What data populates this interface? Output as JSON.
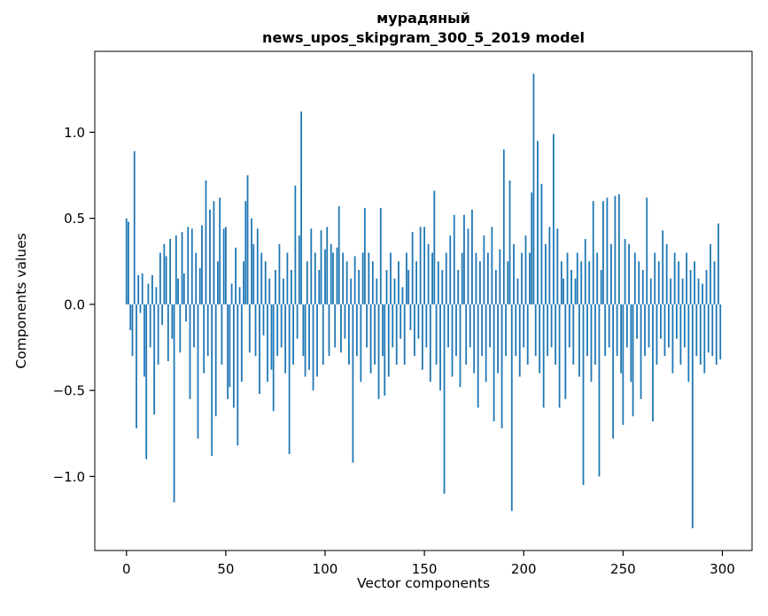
{
  "figure": {
    "title_line1": "мурадяный",
    "title_line2": "news_upos_skipgram_300_5_2019 model",
    "xlabel": "Vector components",
    "ylabel": "Components values"
  },
  "chart_data": {
    "type": "bar",
    "title": "мурадяный\nnews_upos_skipgram_300_5_2019 model",
    "xlabel": "Vector components",
    "ylabel": "Components values",
    "legend": "none",
    "grid": false,
    "bar_color": "#1f77b4",
    "x_ticks": [
      0,
      50,
      100,
      150,
      200,
      250,
      300
    ],
    "x_tick_labels": [
      "0",
      "50",
      "100",
      "150",
      "200",
      "250",
      "300"
    ],
    "y_ticks": [
      -1.0,
      -0.5,
      0.0,
      0.5,
      1.0
    ],
    "y_tick_labels": [
      "−1.0",
      "−0.5",
      "0.0",
      "0.5",
      "1.0"
    ],
    "xlim": [
      -15.95,
      314.95
    ],
    "ylim": [
      -1.43,
      1.47
    ],
    "n_components": 300,
    "values": [
      0.5,
      0.48,
      -0.15,
      -0.3,
      0.89,
      -0.72,
      0.17,
      -0.05,
      0.18,
      -0.42,
      -0.9,
      0.12,
      -0.25,
      0.17,
      -0.64,
      0.1,
      -0.35,
      0.3,
      -0.12,
      0.35,
      0.28,
      -0.33,
      0.38,
      -0.2,
      -1.15,
      0.4,
      0.15,
      -0.28,
      0.42,
      0.18,
      -0.1,
      0.45,
      -0.55,
      0.44,
      -0.25,
      0.3,
      -0.78,
      0.21,
      0.46,
      -0.4,
      0.72,
      -0.3,
      0.55,
      -0.88,
      0.6,
      -0.65,
      0.25,
      0.62,
      -0.35,
      0.44,
      0.45,
      -0.55,
      -0.48,
      0.12,
      -0.6,
      0.33,
      -0.82,
      0.1,
      -0.45,
      0.25,
      0.6,
      0.75,
      -0.28,
      0.5,
      0.35,
      -0.3,
      0.44,
      -0.52,
      0.3,
      -0.18,
      0.25,
      -0.45,
      0.15,
      -0.38,
      -0.62,
      0.2,
      -0.3,
      0.35,
      -0.25,
      0.15,
      -0.4,
      0.3,
      -0.87,
      0.2,
      -0.35,
      0.69,
      -0.2,
      0.4,
      1.12,
      -0.3,
      -0.42,
      0.25,
      -0.38,
      0.44,
      -0.5,
      0.3,
      -0.42,
      0.2,
      0.43,
      -0.35,
      0.32,
      0.45,
      -0.3,
      0.35,
      0.3,
      -0.25,
      0.33,
      0.57,
      -0.28,
      0.3,
      -0.2,
      0.25,
      -0.35,
      0.15,
      -0.92,
      0.28,
      -0.3,
      0.2,
      -0.45,
      0.3,
      0.56,
      -0.25,
      0.3,
      -0.4,
      0.25,
      -0.35,
      0.15,
      -0.55,
      0.56,
      -0.3,
      -0.53,
      0.2,
      -0.42,
      0.3,
      -0.25,
      0.15,
      -0.35,
      0.25,
      -0.2,
      0.1,
      -0.35,
      0.3,
      0.2,
      -0.15,
      0.42,
      -0.3,
      0.25,
      -0.2,
      0.45,
      -0.38,
      0.45,
      -0.25,
      0.35,
      -0.45,
      0.3,
      0.66,
      -0.35,
      0.25,
      -0.5,
      0.2,
      -1.1,
      0.3,
      -0.25,
      0.4,
      -0.42,
      0.52,
      -0.3,
      0.2,
      -0.48,
      0.3,
      0.52,
      -0.35,
      0.44,
      -0.25,
      0.55,
      -0.4,
      0.3,
      -0.6,
      0.25,
      -0.3,
      0.4,
      -0.45,
      0.3,
      -0.25,
      0.45,
      -0.68,
      0.2,
      -0.4,
      0.32,
      -0.72,
      0.9,
      -0.3,
      0.25,
      0.72,
      -1.2,
      0.35,
      -0.3,
      0.15,
      -0.42,
      0.3,
      -0.25,
      0.4,
      -0.35,
      0.3,
      0.65,
      1.34,
      -0.3,
      0.95,
      -0.4,
      0.7,
      -0.6,
      0.35,
      -0.3,
      0.45,
      -0.25,
      0.99,
      -0.35,
      0.44,
      -0.6,
      0.25,
      0.15,
      -0.55,
      0.3,
      -0.25,
      0.2,
      -0.35,
      0.15,
      0.3,
      -0.42,
      0.25,
      -1.05,
      0.38,
      -0.3,
      0.25,
      -0.45,
      0.6,
      -0.35,
      0.3,
      -1.0,
      0.2,
      0.6,
      -0.3,
      0.62,
      -0.25,
      0.35,
      -0.78,
      0.63,
      -0.3,
      0.64,
      -0.4,
      -0.7,
      0.38,
      -0.25,
      0.35,
      -0.45,
      -0.65,
      0.3,
      -0.2,
      0.25,
      -0.55,
      0.2,
      -0.3,
      0.62,
      -0.25,
      0.15,
      -0.68,
      0.3,
      -0.35,
      0.25,
      -0.2,
      0.43,
      -0.3,
      0.35,
      -0.25,
      0.15,
      -0.4,
      0.3,
      -0.2,
      0.25,
      -0.35,
      0.15,
      -0.25,
      0.3,
      -0.45,
      0.2,
      -1.3,
      0.25,
      -0.3,
      0.15,
      -0.35,
      0.12,
      -0.4,
      0.2,
      -0.28,
      0.35,
      -0.3,
      0.25,
      -0.35,
      0.47,
      -0.32
    ]
  }
}
